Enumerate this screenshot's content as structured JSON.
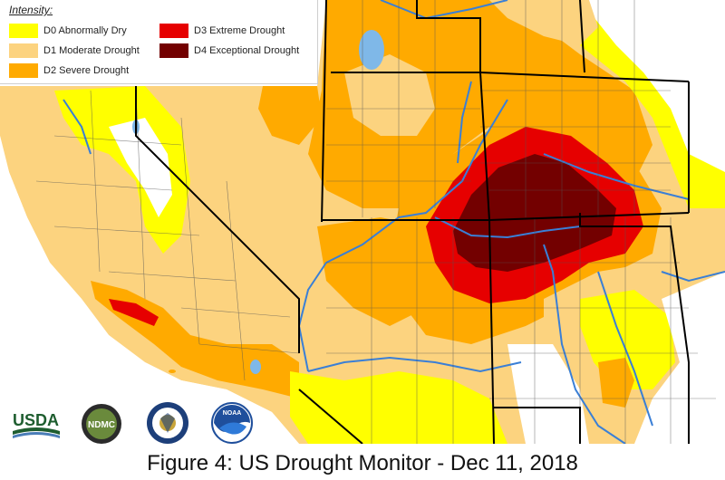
{
  "legend": {
    "title": "Intensity:",
    "items": [
      {
        "label": "D0 Abnormally Dry",
        "color": "#ffff00"
      },
      {
        "label": "D1 Moderate Drought",
        "color": "#fcd37f"
      },
      {
        "label": "D2 Severe Drought",
        "color": "#ffaa00"
      },
      {
        "label": "D3 Extreme Drought",
        "color": "#e60000"
      },
      {
        "label": "D4 Exceptional Drought",
        "color": "#730000"
      }
    ]
  },
  "logos": {
    "usda": "USDA",
    "ndmc": "NDMC",
    "noaa": "NOAA"
  },
  "caption": "Figure 4: US Drought Monitor - Dec 11, 2018",
  "colors": {
    "none": "#ffffff",
    "state_border": "#000000",
    "county_border": "#555555",
    "river": "#3a7fd6",
    "lake": "#7fb8e8"
  }
}
